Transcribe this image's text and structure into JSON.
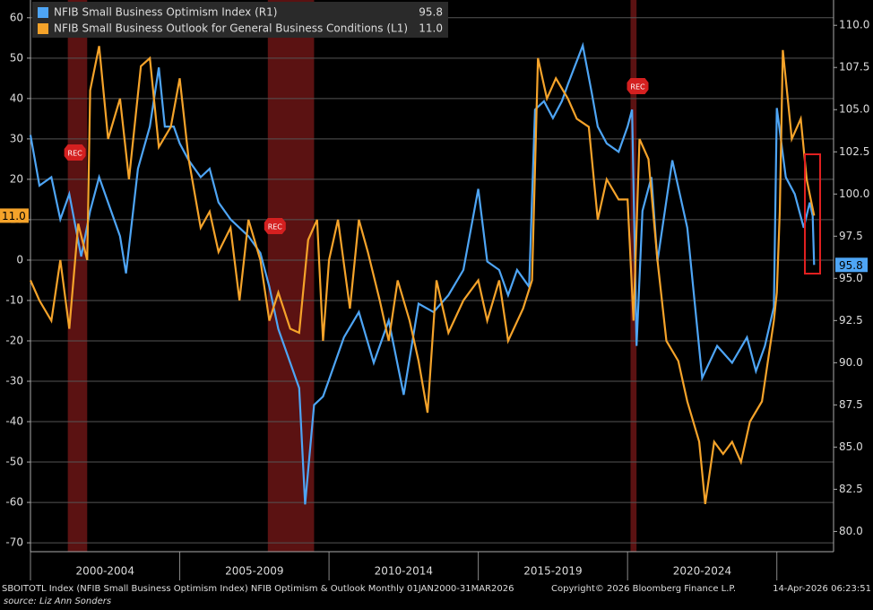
{
  "chart_data": {
    "type": "line",
    "legend": "upper left",
    "grid": true,
    "xlim": [
      2000,
      2026.9
    ],
    "xticks": [
      {
        "value": 2002.5,
        "label": "2000-2004"
      },
      {
        "value": 2007.5,
        "label": "2005-2009"
      },
      {
        "value": 2012.5,
        "label": "2010-2014"
      },
      {
        "value": 2017.5,
        "label": "2015-2019"
      },
      {
        "value": 2022.5,
        "label": "2020-2024"
      }
    ],
    "ylim": [
      -72.2,
      64.4
    ],
    "yticks": [
      60,
      50,
      40,
      30,
      20,
      10,
      0,
      -10,
      -20,
      -30,
      -40,
      -50,
      -60,
      -70
    ],
    "y2lim": [
      78.8,
      111.5
    ],
    "y2ticks": [
      {
        "value": 80,
        "label": "80.0"
      },
      {
        "value": 82.5,
        "label": "82.5"
      },
      {
        "value": 85,
        "label": "85.0"
      },
      {
        "value": 87.5,
        "label": "87.5"
      },
      {
        "value": 90,
        "label": "90.0"
      },
      {
        "value": 92.5,
        "label": "92.5"
      },
      {
        "value": 95,
        "label": "95.0"
      },
      {
        "value": 97.5,
        "label": "97.5"
      },
      {
        "value": 100,
        "label": "100.0"
      },
      {
        "value": 102.5,
        "label": "102.5"
      },
      {
        "value": 105,
        "label": "105.0"
      },
      {
        "value": 107.5,
        "label": "107.5"
      },
      {
        "value": 110,
        "label": "110.0"
      }
    ],
    "recessions": [
      {
        "start": 2001.25,
        "end": 2001.9,
        "label": "REC"
      },
      {
        "start": 2007.95,
        "end": 2009.5,
        "label": "REC"
      },
      {
        "start": 2020.1,
        "end": 2020.3,
        "label": "REC"
      }
    ],
    "series": [
      {
        "name": "NFIB Small Business Optimism Index  (R1)",
        "last_label": "95.8",
        "color": "#4ea5f5",
        "axis": "y2",
        "x": [
          2000.0,
          2000.3,
          2000.7,
          2001.0,
          2001.3,
          2001.7,
          2002.0,
          2002.3,
          2002.7,
          2003.0,
          2003.2,
          2003.6,
          2004.0,
          2004.3,
          2004.5,
          2004.8,
          2005.0,
          2005.3,
          2005.7,
          2006.0,
          2006.3,
          2006.7,
          2007.0,
          2007.3,
          2007.7,
          2008.0,
          2008.3,
          2008.7,
          2009.0,
          2009.2,
          2009.5,
          2009.8,
          2010.0,
          2010.5,
          2011.0,
          2011.5,
          2012.0,
          2012.5,
          2013.0,
          2013.5,
          2014.0,
          2014.5,
          2015.0,
          2015.3,
          2015.7,
          2016.0,
          2016.3,
          2016.7,
          2016.9,
          2017.2,
          2017.5,
          2017.8,
          2018.0,
          2018.5,
          2018.8,
          2019.0,
          2019.3,
          2019.7,
          2020.0,
          2020.15,
          2020.3,
          2020.5,
          2020.8,
          2021.0,
          2021.5,
          2022.0,
          2022.5,
          2023.0,
          2023.5,
          2024.0,
          2024.3,
          2024.6,
          2024.9,
          2025.0,
          2025.3,
          2025.6,
          2025.9,
          2026.1,
          2026.2,
          2026.25
        ],
        "values": [
          103.5,
          100.5,
          101,
          98.5,
          100,
          96.3,
          99,
          101,
          99,
          97.5,
          95.3,
          101.5,
          104,
          107.5,
          104,
          104,
          103,
          102,
          101,
          101.5,
          99.5,
          98.5,
          98,
          97.5,
          96.5,
          94.5,
          92,
          90,
          88.5,
          81.6,
          87.5,
          88,
          89,
          91.5,
          93,
          90,
          92.5,
          88.1,
          93.5,
          93,
          94,
          95.5,
          100.3,
          96,
          95.5,
          94,
          95.5,
          94.5,
          105,
          105.5,
          104.5,
          105.5,
          106.5,
          108.8,
          106,
          104,
          103,
          102.5,
          104,
          105,
          91,
          99,
          101,
          96,
          102,
          98,
          89.1,
          91,
          90,
          91.5,
          89.5,
          91,
          93.3,
          105.1,
          101,
          100,
          98,
          99.5,
          98.7,
          95.8
        ]
      },
      {
        "name": "NFIB Small Business Outlook for General Business Conditions (L1)",
        "last_label": "11.0",
        "color": "#f5a32a",
        "x": [
          2000.0,
          2000.3,
          2000.7,
          2001.0,
          2001.3,
          2001.6,
          2001.9,
          2002.0,
          2002.3,
          2002.6,
          2003.0,
          2003.3,
          2003.7,
          2004.0,
          2004.3,
          2004.7,
          2005.0,
          2005.3,
          2005.7,
          2006.0,
          2006.3,
          2006.7,
          2007.0,
          2007.3,
          2007.7,
          2008.0,
          2008.3,
          2008.7,
          2009.0,
          2009.3,
          2009.6,
          2009.8,
          2010.0,
          2010.3,
          2010.7,
          2011.0,
          2011.3,
          2011.7,
          2012.0,
          2012.3,
          2012.7,
          2013.0,
          2013.3,
          2013.6,
          2014.0,
          2014.5,
          2015.0,
          2015.3,
          2015.7,
          2016.0,
          2016.5,
          2016.8,
          2017.0,
          2017.3,
          2017.6,
          2018.0,
          2018.3,
          2018.7,
          2019.0,
          2019.3,
          2019.7,
          2020.0,
          2020.2,
          2020.4,
          2020.7,
          2021.0,
          2021.3,
          2021.7,
          2022.0,
          2022.4,
          2022.6,
          2022.9,
          2023.2,
          2023.5,
          2023.8,
          2024.1,
          2024.5,
          2024.9,
          2025.0,
          2025.1,
          2025.2,
          2025.5,
          2025.8,
          2026.0,
          2026.25
        ],
        "values": [
          -5,
          -10,
          -15,
          0,
          -17,
          9,
          0,
          42,
          53,
          30,
          40,
          20,
          48,
          50,
          28,
          33,
          45,
          25,
          8,
          12,
          2,
          8,
          -10,
          10,
          0,
          -15,
          -8,
          -17,
          -18,
          5,
          10,
          -20,
          0,
          10,
          -12,
          10,
          2,
          -10,
          -20,
          -5,
          -15,
          -25,
          -37.8,
          -5,
          -18,
          -10,
          -5,
          -15,
          -5,
          -20,
          -12,
          -5,
          50,
          40,
          45,
          40,
          35,
          33,
          10,
          20,
          15,
          15,
          -15,
          30,
          25,
          0,
          -20,
          -25,
          -35,
          -45,
          -60.4,
          -45,
          -48,
          -45,
          -50,
          -40,
          -35,
          -15,
          -8,
          12,
          52,
          30,
          35,
          20,
          11
        ]
      }
    ],
    "source": "source: Liz Ann Sonders",
    "footer": "SBOITOTL Index (NFIB Small Business Optimism Index) NFIB Optimism & Outlook Monthly 01JAN2000-31MAR2026",
    "copyright": "Copyright© 2026 Bloomberg Finance L.P.",
    "timestamp": "14-Apr-2026 06:23:51"
  }
}
